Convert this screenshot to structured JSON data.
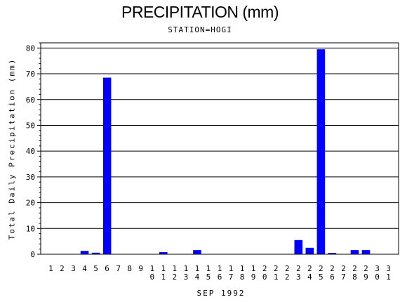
{
  "chart_data": {
    "type": "bar",
    "title": "PRECIPITATION (mm)",
    "subtitle": "STATION=HOGI",
    "xlabel": "SEP 1992",
    "ylabel": "Total Daily Precipitation (mm)",
    "ylim": [
      0,
      82
    ],
    "yticks": [
      0,
      10,
      20,
      30,
      40,
      50,
      60,
      70,
      80
    ],
    "grid": "horizontal",
    "bar_color": "#0000ff",
    "categories": [
      "1",
      "2",
      "3",
      "4",
      "5",
      "6",
      "7",
      "8",
      "9",
      "10",
      "11",
      "12",
      "13",
      "14",
      "15",
      "16",
      "17",
      "18",
      "19",
      "20",
      "21",
      "22",
      "23",
      "24",
      "25",
      "26",
      "27",
      "28",
      "29",
      "30",
      "31"
    ],
    "values": [
      0,
      0,
      0,
      1.3,
      0.6,
      68.5,
      0,
      0,
      0,
      0,
      0.8,
      0,
      0,
      1.6,
      0,
      0,
      0,
      0,
      0,
      0,
      0,
      0,
      5.5,
      2.5,
      79.5,
      0.5,
      0,
      1.6,
      1.6,
      0,
      0
    ]
  }
}
